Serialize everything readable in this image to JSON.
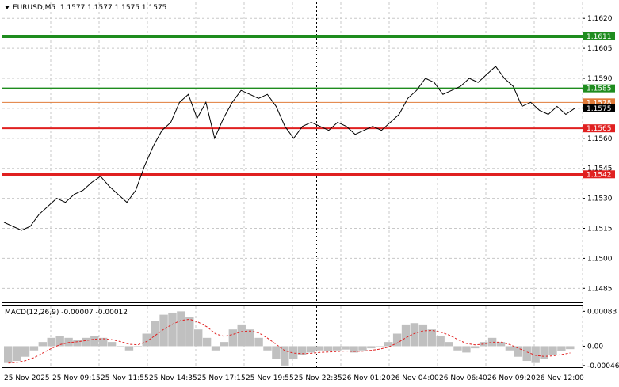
{
  "header": {
    "symbol": "EURUSD,M5",
    "ohlc": "1.1577 1.1577 1.1575 1.1575"
  },
  "price_axis": {
    "ticks": [
      "1.1620",
      "1.1605",
      "1.1590",
      "1.1575",
      "1.1560",
      "1.1545",
      "1.1530",
      "1.1515",
      "1.1500",
      "1.1485"
    ],
    "badges": [
      {
        "label": "1.1611",
        "color": "#1e8c1e",
        "text_color": "#ffffff"
      },
      {
        "label": "1.1585",
        "color": "#1e8c1e",
        "text_color": "#ffffff"
      },
      {
        "label": "1.1578",
        "color": "#e07b39",
        "text_color": "#ffffff"
      },
      {
        "label": "1.1575",
        "color": "#000000",
        "text_color": "#ffffff"
      },
      {
        "label": "1.1565",
        "color": "#e02020",
        "text_color": "#ffffff"
      },
      {
        "label": "1.1542",
        "color": "#e02020",
        "text_color": "#ffffff"
      }
    ]
  },
  "levels": [
    {
      "price": 1.1611,
      "color": "#1e8c1e",
      "width": "thick"
    },
    {
      "price": 1.1585,
      "color": "#1e8c1e",
      "width": "medium"
    },
    {
      "price": 1.1578,
      "color": "#e07b39",
      "width": "thin"
    },
    {
      "price": 1.1565,
      "color": "#e02020",
      "width": "medium"
    },
    {
      "price": 1.1542,
      "color": "#e02020",
      "width": "thick"
    }
  ],
  "time_axis": {
    "labels": [
      "25 Nov 2025",
      "25 Nov 09:15",
      "25 Nov 11:55",
      "25 Nov 14:35",
      "25 Nov 17:15",
      "25 Nov 19:55",
      "25 Nov 22:35",
      "26 Nov 01:20",
      "26 Nov 04:00",
      "26 Nov 06:40",
      "26 Nov 09:20",
      "26 Nov 12:00"
    ]
  },
  "macd": {
    "label": "MACD(12,26,9) -0.00007 -0.00012",
    "ticks": [
      "0.00083",
      "0.00",
      "-0.00046"
    ]
  },
  "chart_data": {
    "type": "line",
    "title": "EURUSD,M5",
    "ylim": [
      1.1478,
      1.1628
    ],
    "price_line": [
      1.1518,
      1.1516,
      1.1514,
      1.1516,
      1.1522,
      1.1526,
      1.153,
      1.1528,
      1.1532,
      1.1534,
      1.1538,
      1.1541,
      1.1536,
      1.1532,
      1.1528,
      1.1534,
      1.1546,
      1.1556,
      1.1564,
      1.1568,
      1.1578,
      1.1582,
      1.157,
      1.1578,
      1.156,
      1.157,
      1.1578,
      1.1584,
      1.1582,
      1.158,
      1.1582,
      1.1576,
      1.1566,
      1.156,
      1.1566,
      1.1568,
      1.1566,
      1.1564,
      1.1568,
      1.1566,
      1.1562,
      1.1564,
      1.1566,
      1.1564,
      1.1568,
      1.1572,
      1.158,
      1.1584,
      1.159,
      1.1588,
      1.1582,
      1.1584,
      1.1586,
      1.159,
      1.1588,
      1.1592,
      1.1596,
      1.159,
      1.1586,
      1.1576,
      1.1578,
      1.1574,
      1.1572,
      1.1576,
      1.1572,
      1.1575
    ],
    "macd_histogram": [
      -0.0004,
      -0.00035,
      -0.00025,
      -0.0001,
      0.0001,
      0.0002,
      0.00025,
      0.0002,
      0.00015,
      0.0002,
      0.00025,
      0.0002,
      0.0001,
      0.0,
      -0.0001,
      0.0,
      0.0003,
      0.0006,
      0.00075,
      0.0008,
      0.00083,
      0.0007,
      0.0004,
      0.0002,
      -0.0001,
      0.0001,
      0.0004,
      0.0005,
      0.0004,
      0.0002,
      -0.0001,
      -0.0003,
      -0.00046,
      -0.0003,
      -0.0002,
      -0.00015,
      -0.0001,
      -0.00012,
      -0.0001,
      -8e-05,
      -0.00015,
      -0.0001,
      -5e-05,
      0.0,
      0.0001,
      0.0003,
      0.0005,
      0.00055,
      0.0005,
      0.0004,
      0.00025,
      0.0001,
      -0.0001,
      -0.00015,
      -5e-05,
      0.0001,
      0.0002,
      0.0001,
      -0.0001,
      -0.00025,
      -0.00035,
      -0.0004,
      -0.0003,
      -0.0002,
      -0.00012,
      -7e-05
    ],
    "macd_ylim": [
      -0.0005,
      0.00095
    ],
    "grid": true
  }
}
